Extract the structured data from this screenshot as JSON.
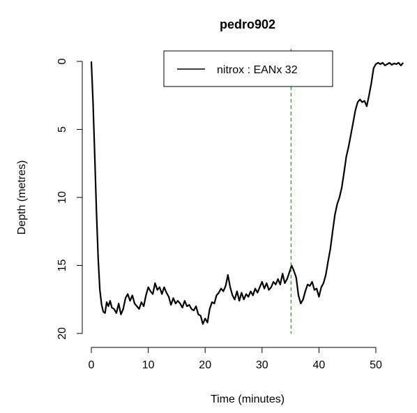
{
  "chart_data": {
    "type": "line",
    "title": "pedro902",
    "xlabel": "Time (minutes)",
    "ylabel": "Depth (metres)",
    "xlim": [
      -2,
      57
    ],
    "ylim": [
      20,
      0
    ],
    "y_axis_inverted": true,
    "x_ticks": [
      0,
      10,
      20,
      30,
      40,
      50
    ],
    "y_ticks": [
      0,
      5,
      10,
      15,
      20
    ],
    "grid": false,
    "legend": {
      "position": "top-right",
      "entries": [
        {
          "label": "nitrox : EANx 32",
          "color": "#000000"
        }
      ]
    },
    "vline": {
      "x": 35.1,
      "color": "#00c000",
      "style": "dashed"
    },
    "series": [
      {
        "name": "nitrox : EANx 32",
        "color": "#000000",
        "x": [
          0,
          0.3,
          0.6,
          0.9,
          1.2,
          1.5,
          1.8,
          2.1,
          2.4,
          2.7,
          3.0,
          3.3,
          3.6,
          4.0,
          4.4,
          4.8,
          5.2,
          5.6,
          6.0,
          6.4,
          6.8,
          7.2,
          7.6,
          8.0,
          8.4,
          8.8,
          9.2,
          9.6,
          10.0,
          10.4,
          10.8,
          11.2,
          11.6,
          12.0,
          12.4,
          12.8,
          13.2,
          13.6,
          14.0,
          14.4,
          14.8,
          15.2,
          15.6,
          16.0,
          16.4,
          16.8,
          17.2,
          17.6,
          18.0,
          18.4,
          18.8,
          19.2,
          19.6,
          20.0,
          20.4,
          20.8,
          21.2,
          21.6,
          22.0,
          22.4,
          22.8,
          23.2,
          23.6,
          24.0,
          24.4,
          24.8,
          25.2,
          25.6,
          26.0,
          26.4,
          26.8,
          27.2,
          27.6,
          28.0,
          28.4,
          28.8,
          29.2,
          29.6,
          30.0,
          30.4,
          30.8,
          31.2,
          31.6,
          32.0,
          32.4,
          32.8,
          33.2,
          33.6,
          34.0,
          34.4,
          34.8,
          35.2,
          35.6,
          36.0,
          36.4,
          36.8,
          37.2,
          37.6,
          38.0,
          38.4,
          38.8,
          39.2,
          39.6,
          40.0,
          40.4,
          40.8,
          41.2,
          41.6,
          42.0,
          42.4,
          42.8,
          43.2,
          43.6,
          44.0,
          44.4,
          44.8,
          45.2,
          45.6,
          46.0,
          46.4,
          46.8,
          47.2,
          47.6,
          48.0,
          48.4,
          48.8,
          49.2,
          49.6,
          50.0,
          50.4,
          50.8,
          51.2,
          51.6,
          52.0,
          52.4,
          52.8,
          53.2,
          53.6,
          54.0,
          54.4,
          54.8
        ],
        "y": [
          0.0,
          3.0,
          7.0,
          11.0,
          14.5,
          16.8,
          17.9,
          18.4,
          18.5,
          17.7,
          18.0,
          17.6,
          18.1,
          18.2,
          18.5,
          17.8,
          18.6,
          18.2,
          17.4,
          17.1,
          17.6,
          17.2,
          17.8,
          18.0,
          18.2,
          17.7,
          18.0,
          17.2,
          16.6,
          16.9,
          17.1,
          16.3,
          16.8,
          16.6,
          17.1,
          16.6,
          17.0,
          17.3,
          17.9,
          17.4,
          17.8,
          17.6,
          17.8,
          18.1,
          17.6,
          18.0,
          17.9,
          18.2,
          18.3,
          18.0,
          18.6,
          18.7,
          19.3,
          18.9,
          19.2,
          18.2,
          17.7,
          17.8,
          17.2,
          17.0,
          16.7,
          16.9,
          16.5,
          15.7,
          16.6,
          17.2,
          17.5,
          16.9,
          17.6,
          17.0,
          17.5,
          17.1,
          17.3,
          16.9,
          17.2,
          16.7,
          17.0,
          16.6,
          16.2,
          16.7,
          16.3,
          16.8,
          16.6,
          16.2,
          16.4,
          16.0,
          16.4,
          15.6,
          16.3,
          16.0,
          15.5,
          15.0,
          15.4,
          15.9,
          17.2,
          17.8,
          17.5,
          16.9,
          16.4,
          16.5,
          16.2,
          16.8,
          16.7,
          17.3,
          16.6,
          16.3,
          15.7,
          14.7,
          13.8,
          12.5,
          11.3,
          10.5,
          10.0,
          9.3,
          8.2,
          7.0,
          6.3,
          5.4,
          4.5,
          3.6,
          3.0,
          2.8,
          3.0,
          2.9,
          3.3,
          2.5,
          1.6,
          0.5,
          0.2,
          0.1,
          0.2,
          0.1,
          0.3,
          0.2,
          0.1,
          0.25,
          0.15,
          0.2,
          0.1,
          0.3,
          0.1
        ]
      }
    ]
  }
}
